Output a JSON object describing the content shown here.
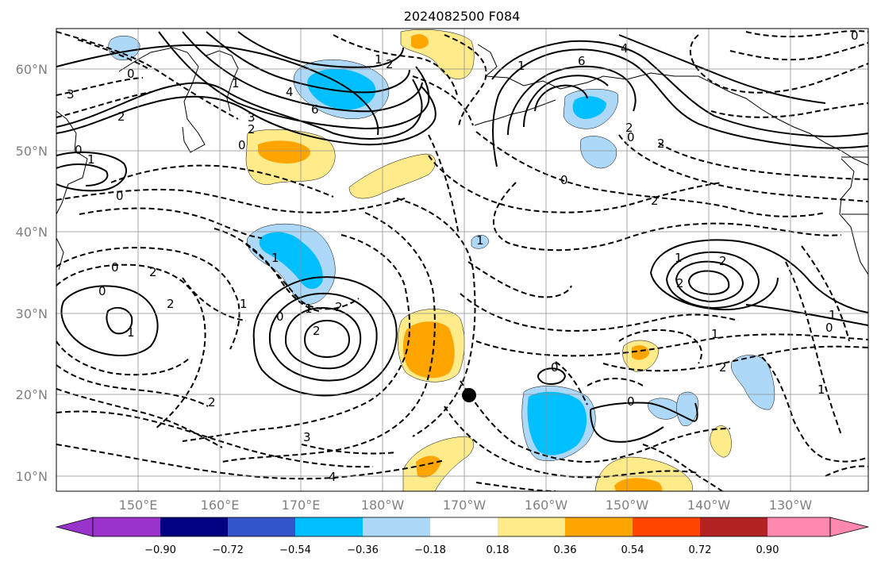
{
  "title": "2024082500 F084",
  "map": {
    "lat_labels": [
      "60°N",
      "50°N",
      "40°N",
      "30°N",
      "20°N",
      "10°N"
    ],
    "lon_labels": [
      "150°E",
      "160°E",
      "170°E",
      "180°W",
      "170°W",
      "160°W",
      "150°W",
      "140°W",
      "130°W"
    ],
    "marker": {
      "lat": 19.8,
      "lon": -168.9,
      "symbol": "filled black circle"
    },
    "fill_colors": {
      "neg_090_072": "#000080",
      "neg_072_054": "#3355cc",
      "neg_054_036": "#00bfff",
      "neg_036_018": "#add8f8",
      "neutral": "#ffffff",
      "pos_018_036": "#ffeb8a",
      "pos_036_054": "#ffa500",
      "pos_054_072": "#ff4500",
      "pos_072_090": "#b22222",
      "over": "#ff88b0",
      "under": "#9933cc"
    },
    "contour_labels": [
      "0",
      "1",
      "2",
      "3",
      "4",
      "6",
      "0",
      "1",
      "2",
      "3",
      "0",
      "1",
      "2",
      "0",
      "1",
      "2",
      "0",
      "2",
      "1",
      "0",
      "1",
      "2",
      "0",
      "1",
      "2",
      "6",
      "4",
      "2",
      "0",
      "2",
      "0",
      "1",
      "2",
      "0",
      "1",
      "1",
      "2",
      "0",
      "1",
      "2",
      "0",
      "1",
      "0",
      "2",
      "1",
      "2",
      "3",
      "4"
    ]
  },
  "colorbar": {
    "ticks": [
      "−0.90",
      "−0.72",
      "−0.54",
      "−0.36",
      "−0.18",
      "0.18",
      "0.36",
      "0.54",
      "0.72",
      "0.90"
    ],
    "colors": [
      "#9933cc",
      "#000080",
      "#3355cc",
      "#00bfff",
      "#add8f8",
      "#ffffff",
      "#ffeb8a",
      "#ffa500",
      "#ff4500",
      "#b22222",
      "#ff88b0"
    ]
  }
}
